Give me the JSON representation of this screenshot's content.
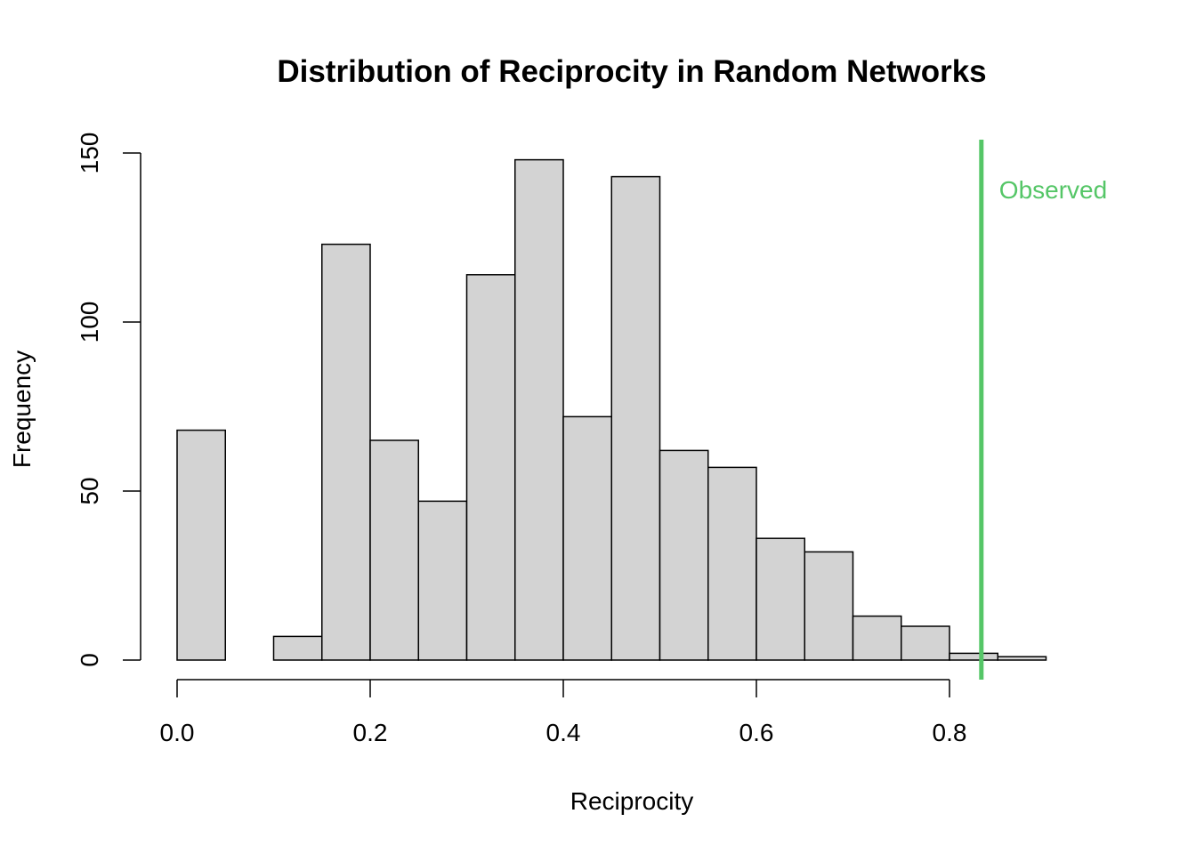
{
  "chart_data": {
    "type": "bar",
    "title": "Distribution of Reciprocity in Random Networks",
    "xlabel": "Reciprocity",
    "ylabel": "Frequency",
    "bin_width": 0.05,
    "bin_starts": [
      0.0,
      0.05,
      0.1,
      0.15,
      0.2,
      0.25,
      0.3,
      0.35,
      0.4,
      0.45,
      0.5,
      0.55,
      0.6,
      0.65,
      0.7,
      0.75,
      0.8,
      0.85
    ],
    "values": [
      68,
      0,
      7,
      123,
      65,
      47,
      114,
      148,
      72,
      143,
      62,
      57,
      36,
      32,
      13,
      10,
      2,
      1
    ],
    "xlim": [
      0,
      0.9
    ],
    "ylim": [
      0,
      150
    ],
    "x_ticks": [
      0.0,
      0.2,
      0.4,
      0.6,
      0.8
    ],
    "x_tick_labels": [
      "0.0",
      "0.2",
      "0.4",
      "0.6",
      "0.8"
    ],
    "y_ticks": [
      0,
      50,
      100,
      150
    ],
    "y_tick_labels": [
      "0",
      "50",
      "100",
      "150"
    ],
    "bar_fill": "#d3d3d3",
    "annotation": {
      "label": "Observed",
      "x": 0.833,
      "color": "#55c667"
    },
    "grid": false
  }
}
